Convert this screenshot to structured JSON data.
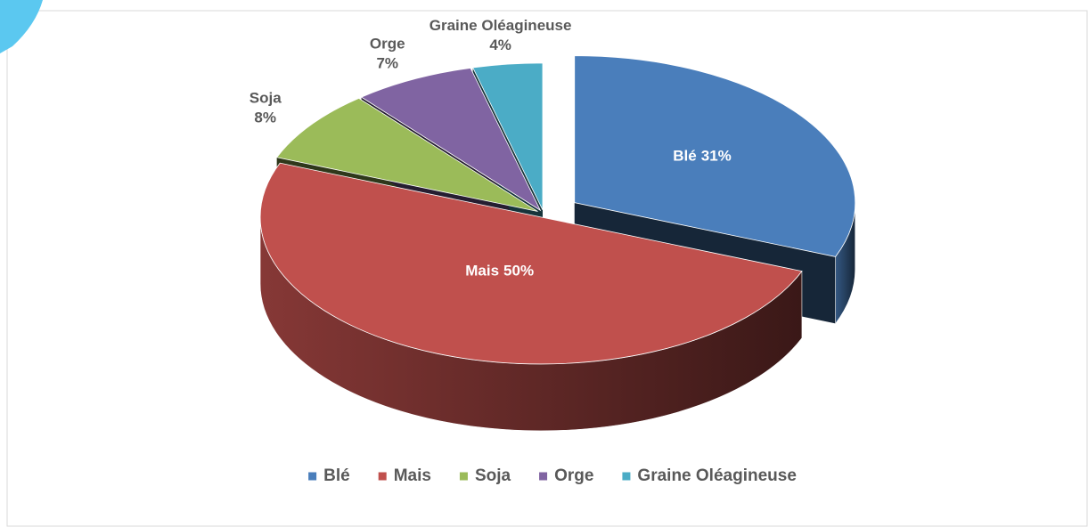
{
  "chart_data": {
    "type": "pie",
    "categories": [
      "Blé",
      "Mais",
      "Soja",
      "Orge",
      "Graine Oléagineuse"
    ],
    "values": [
      31,
      50,
      8,
      7,
      4
    ],
    "value_labels": [
      "31%",
      "50%",
      "8%",
      "7%",
      "4%"
    ],
    "colors": [
      "#4a7ebb",
      "#c0504d",
      "#9bbb59",
      "#8064a2",
      "#4bacc6"
    ],
    "legend": "bottom"
  }
}
